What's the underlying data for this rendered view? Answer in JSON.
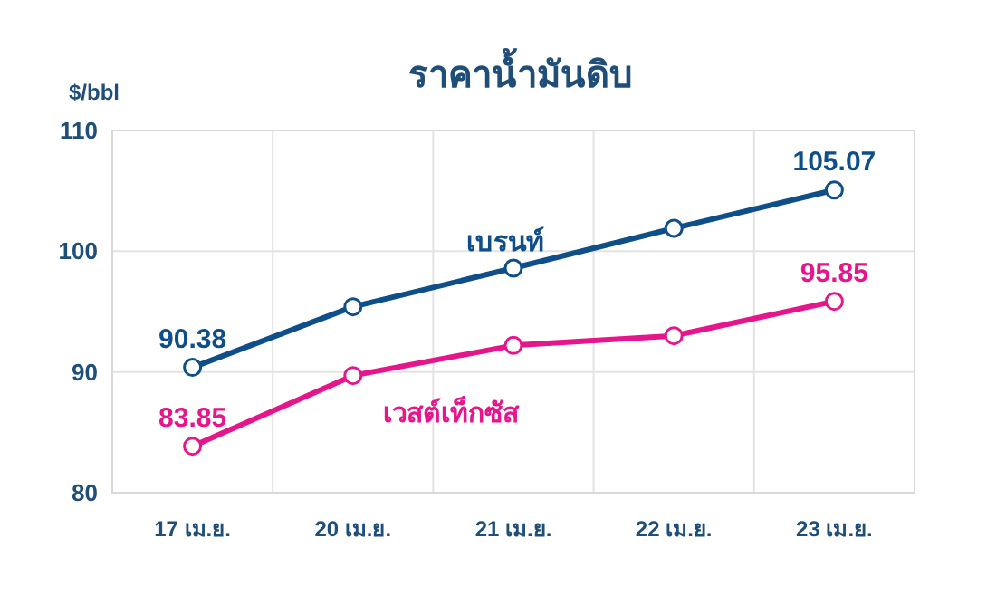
{
  "chart_data": {
    "type": "line",
    "title": "ราคาน้ำมันดิบ",
    "ylabel": "$/bbl",
    "categories": [
      "17 เม.ย.",
      "20 เม.ย.",
      "21 เม.ย.",
      "22 เม.ย.",
      "23 เม.ย."
    ],
    "series": [
      {
        "name": "เบรนท์",
        "color": "#0e4f8a",
        "values": [
          90.38,
          95.4,
          98.6,
          101.9,
          105.07
        ],
        "value_labels": [
          "90.38",
          null,
          null,
          null,
          "105.07"
        ]
      },
      {
        "name": "เวสต์เท็กซัส",
        "color": "#e5168c",
        "values": [
          83.85,
          89.7,
          92.2,
          93.0,
          95.85
        ],
        "value_labels": [
          "83.85",
          null,
          null,
          null,
          "95.85"
        ]
      }
    ],
    "ylim": [
      80,
      110
    ],
    "yticks": [
      80,
      90,
      100,
      110
    ],
    "grid": true,
    "marker": "circle",
    "line_style": "solid"
  }
}
